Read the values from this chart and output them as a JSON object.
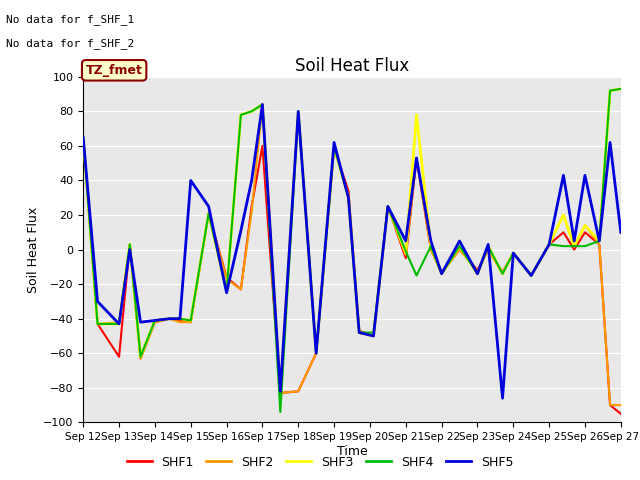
{
  "title": "Soil Heat Flux",
  "xlabel": "Time",
  "ylabel": "Soil Heat Flux",
  "ylim": [
    -100,
    100
  ],
  "yticks": [
    -100,
    -80,
    -60,
    -40,
    -20,
    0,
    20,
    40,
    60,
    80,
    100
  ],
  "xtick_labels": [
    "Sep 12",
    "Sep 13",
    "Sep 14",
    "Sep 15",
    "Sep 16",
    "Sep 17",
    "Sep 18",
    "Sep 19",
    "Sep 20",
    "Sep 21",
    "Sep 22",
    "Sep 23",
    "Sep 24",
    "Sep 25",
    "Sep 26",
    "Sep 27"
  ],
  "no_data_text_1": "No data for f_SHF_1",
  "no_data_text_2": "No data for f_SHF_2",
  "tz_label": "TZ_fmet",
  "bg_color": "#e8e8e8",
  "colors": {
    "SHF1": "#ff0000",
    "SHF2": "#ff9900",
    "SHF3": "#ffff00",
    "SHF4": "#00bb00",
    "SHF5": "#0000dd"
  },
  "SHF1_x": [
    0,
    0.4,
    1,
    1.3,
    1.6,
    2.0,
    2.4,
    2.7,
    3.0,
    3.5,
    4.0,
    4.4,
    4.7,
    5.0,
    5.5,
    6.0,
    6.5,
    7.0,
    7.4,
    7.7,
    8.1,
    8.5,
    9.0,
    9.3,
    9.7,
    10.0,
    10.5,
    11.0,
    11.3,
    11.7,
    12.0,
    12.5,
    13.0,
    13.4,
    13.7,
    14.0,
    14.4,
    14.7,
    15.0
  ],
  "SHF1_y": [
    65,
    -43,
    -62,
    3,
    -63,
    -42,
    -40,
    -41,
    -42,
    21,
    -16,
    -23,
    25,
    60,
    -83,
    -82,
    -60,
    59,
    34,
    -47,
    -50,
    25,
    -5,
    53,
    0,
    -13,
    0,
    -12,
    0,
    -13,
    -2,
    -15,
    3,
    10,
    0,
    10,
    3,
    -90,
    -95
  ],
  "SHF2_x": [
    0,
    0.4,
    1,
    1.3,
    1.6,
    2.0,
    2.4,
    2.7,
    3.0,
    3.5,
    4.0,
    4.4,
    4.7,
    5.0,
    5.5,
    6.0,
    6.5,
    7.0,
    7.4,
    7.7,
    8.1,
    8.5,
    9.0,
    9.3,
    9.7,
    10.0,
    10.5,
    11.0,
    11.3,
    11.7,
    12.0,
    12.5,
    13.0,
    13.4,
    13.7,
    14.0,
    14.4,
    14.7,
    15.0
  ],
  "SHF2_y": [
    65,
    -43,
    -42,
    3,
    -63,
    -42,
    -40,
    -42,
    -42,
    21,
    -17,
    -23,
    22,
    84,
    -83,
    -82,
    -60,
    59,
    30,
    -47,
    -50,
    25,
    -3,
    53,
    0,
    -14,
    0,
    -13,
    0,
    -14,
    -2,
    -15,
    3,
    20,
    2,
    14,
    3,
    -90,
    -90
  ],
  "SHF3_x": [
    0,
    0.4,
    1,
    1.3,
    1.6,
    2.0,
    2.4,
    2.7,
    3.0,
    3.5,
    4.0,
    4.4,
    4.7,
    5.0,
    5.5,
    6.0,
    6.5,
    7.0,
    7.4,
    7.7,
    8.1,
    8.5,
    9.0,
    9.3,
    9.7,
    10.0,
    10.5,
    11.0,
    11.3,
    11.7,
    12.0,
    12.5,
    13.0,
    13.4,
    13.7,
    14.0,
    14.4,
    14.7,
    15.0
  ],
  "SHF3_y": [
    65,
    -43,
    -43,
    3,
    -62,
    -41,
    -40,
    -40,
    -41,
    21,
    -24,
    78,
    80,
    84,
    -83,
    80,
    -60,
    60,
    30,
    -48,
    -50,
    25,
    -2,
    78,
    2,
    -14,
    2,
    -14,
    2,
    -14,
    -2,
    -15,
    3,
    20,
    2,
    14,
    5,
    92,
    93
  ],
  "SHF4_x": [
    0,
    0.4,
    1,
    1.3,
    1.6,
    2.0,
    2.4,
    2.7,
    3.0,
    3.5,
    4.0,
    4.4,
    4.7,
    5.0,
    5.5,
    6.0,
    6.5,
    7.0,
    7.4,
    7.7,
    8.1,
    8.5,
    9.0,
    9.3,
    9.7,
    10.0,
    10.5,
    11.0,
    11.3,
    11.7,
    12.0,
    12.5,
    13.0,
    13.4,
    13.7,
    14.0,
    14.4,
    14.7,
    15.0
  ],
  "SHF4_y": [
    65,
    -43,
    -43,
    3,
    -62,
    -41,
    -40,
    -40,
    -41,
    21,
    -24,
    78,
    80,
    84,
    -94,
    80,
    -60,
    60,
    30,
    -48,
    -48,
    25,
    -1,
    -15,
    2,
    -14,
    2,
    -14,
    2,
    -14,
    -2,
    -15,
    3,
    2,
    2,
    2,
    5,
    92,
    93
  ],
  "SHF5_x": [
    0,
    0.4,
    1,
    1.3,
    1.6,
    2.0,
    2.4,
    2.7,
    3.0,
    3.5,
    4.0,
    4.4,
    4.7,
    5.0,
    5.5,
    6.0,
    6.5,
    7.0,
    7.4,
    7.7,
    8.1,
    8.5,
    9.0,
    9.3,
    9.7,
    10.0,
    10.5,
    11.0,
    11.3,
    11.7,
    12.0,
    12.5,
    13.0,
    13.4,
    13.7,
    14.0,
    14.4,
    14.7,
    15.0
  ],
  "SHF5_y": [
    65,
    -30,
    -43,
    0,
    -42,
    -41,
    -40,
    -40,
    40,
    25,
    -25,
    11,
    40,
    84,
    -82,
    80,
    -60,
    62,
    30,
    -48,
    -50,
    25,
    5,
    53,
    5,
    -14,
    5,
    -14,
    3,
    -86,
    -2,
    -15,
    3,
    43,
    5,
    43,
    5,
    62,
    10
  ]
}
